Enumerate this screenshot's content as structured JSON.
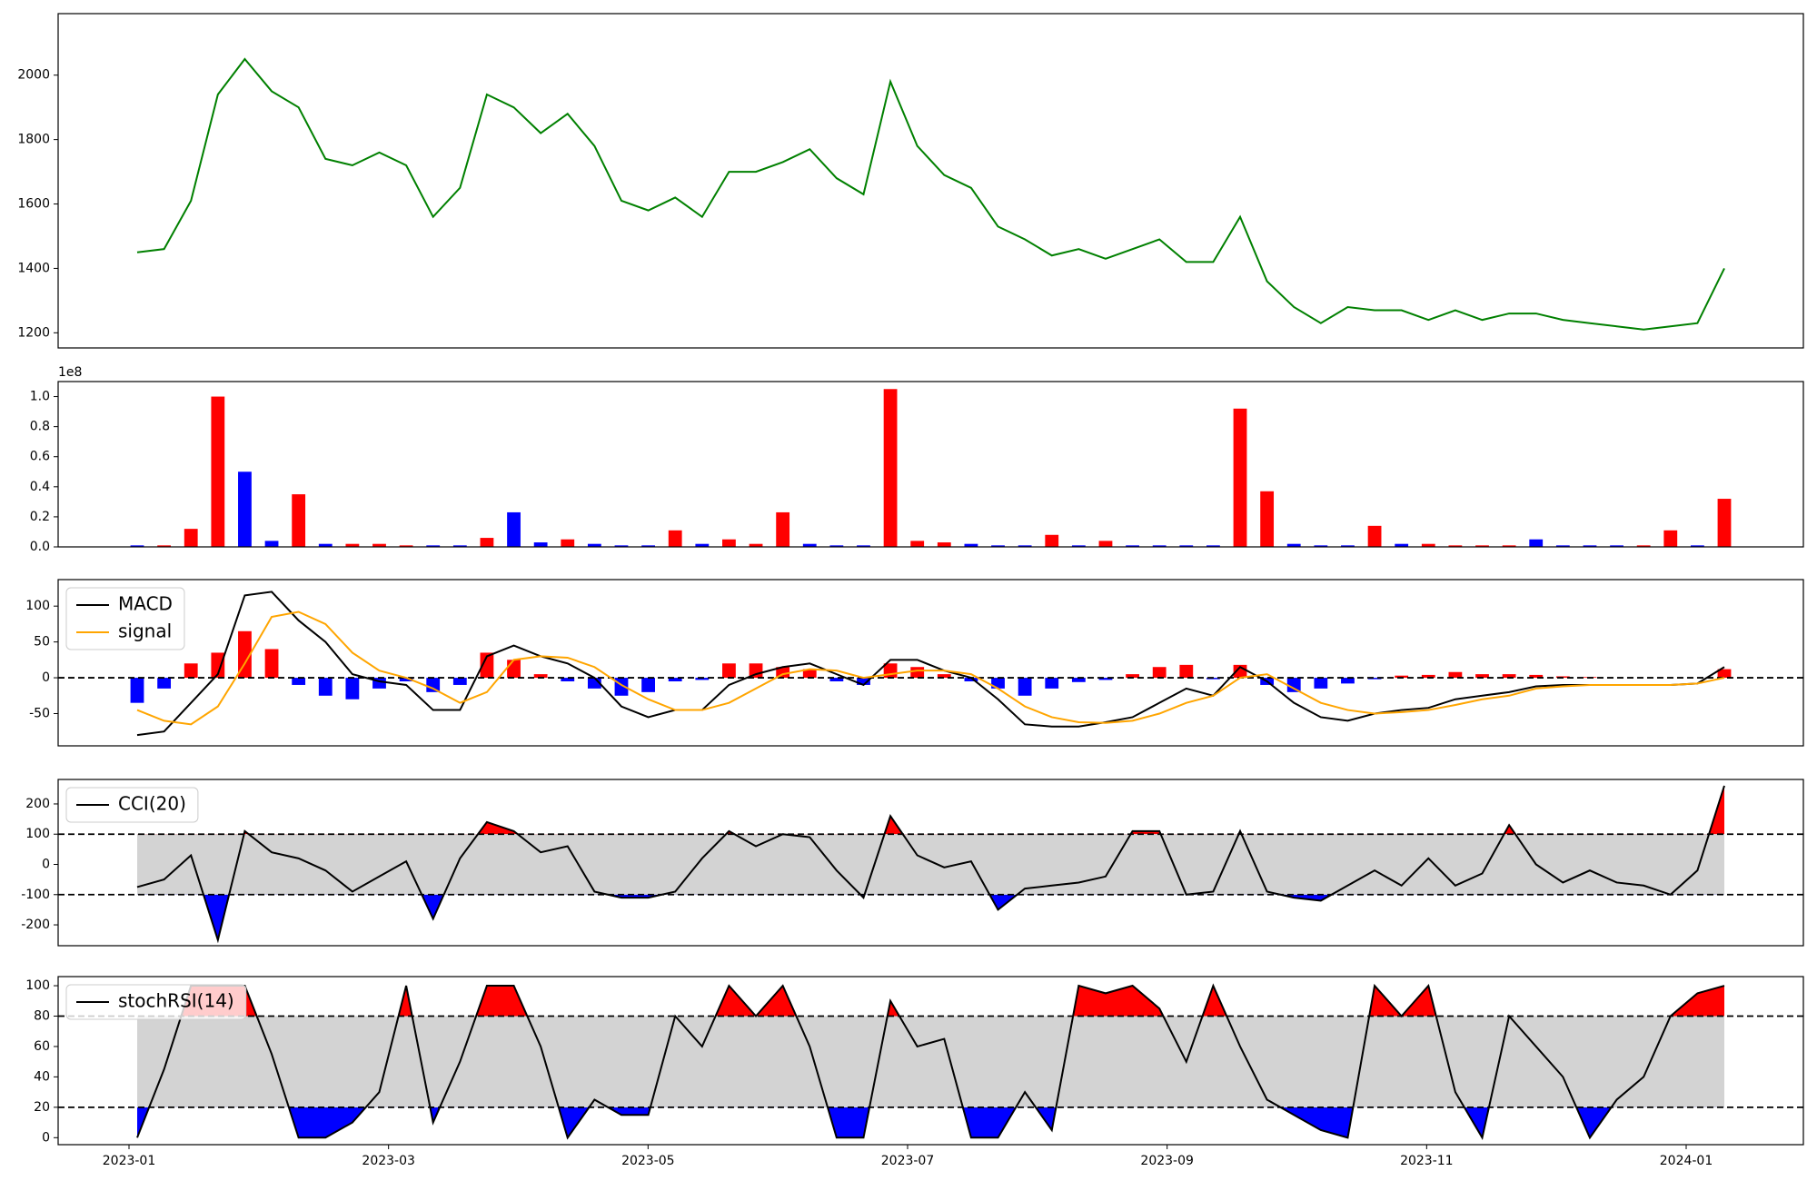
{
  "chart_data": [
    {
      "type": "line",
      "ylim": [
        1153,
        2191
      ],
      "yticks": [
        1200,
        1400,
        1600,
        1800,
        2000
      ],
      "series": [
        {
          "color": "green",
          "values": [
            1450,
            1460,
            1610,
            1940,
            2050,
            1950,
            1900,
            1740,
            1720,
            1760,
            1720,
            1560,
            1650,
            1940,
            1900,
            1820,
            1880,
            1780,
            1610,
            1580,
            1620,
            1560,
            1700,
            1700,
            1730,
            1770,
            1680,
            1630,
            1980,
            1780,
            1690,
            1650,
            1530,
            1490,
            1440,
            1460,
            1430,
            1460,
            1490,
            1420,
            1420,
            1560,
            1360,
            1280,
            1230,
            1280,
            1270,
            1270,
            1240,
            1270,
            1240,
            1260,
            1260,
            1240,
            1230,
            1220,
            1210,
            1220,
            1230,
            1400
          ]
        }
      ]
    },
    {
      "type": "bar",
      "offset_label": "1e8",
      "ylim": [
        0,
        1.1
      ],
      "yticks": [
        {
          "value": 0,
          "label": "0.0"
        },
        0.2,
        0.4,
        0.6,
        0.8,
        {
          "value": 1,
          "label": "1.0"
        }
      ],
      "values": [
        0.01,
        0.01,
        0.12,
        1.0,
        0.5,
        0.04,
        0.35,
        0.02,
        0.02,
        0.02,
        0.01,
        0.01,
        0.01,
        0.06,
        0.23,
        0.03,
        0.05,
        0.02,
        0.01,
        0.01,
        0.11,
        0.02,
        0.05,
        0.02,
        0.23,
        0.02,
        0.01,
        0.01,
        1.05,
        0.04,
        0.03,
        0.02,
        0.01,
        0.01,
        0.08,
        0.01,
        0.04,
        0.01,
        0.01,
        0.01,
        0.01,
        0.92,
        0.37,
        0.02,
        0.01,
        0.01,
        0.14,
        0.02,
        0.02,
        0.01,
        0.01,
        0.01,
        0.05,
        0.01,
        0.01,
        0.01,
        0.01,
        0.11,
        0.01,
        0.32
      ],
      "colors": [
        "blue",
        "red",
        "red",
        "red",
        "blue",
        "blue",
        "red",
        "blue",
        "red",
        "red",
        "red",
        "blue",
        "blue",
        "red",
        "blue",
        "blue",
        "red",
        "blue",
        "blue",
        "blue",
        "red",
        "blue",
        "red",
        "red",
        "red",
        "blue",
        "blue",
        "blue",
        "red",
        "red",
        "red",
        "blue",
        "blue",
        "blue",
        "red",
        "blue",
        "red",
        "blue",
        "blue",
        "blue",
        "blue",
        "red",
        "red",
        "blue",
        "blue",
        "blue",
        "red",
        "blue",
        "red",
        "red",
        "red",
        "red",
        "blue",
        "blue",
        "blue",
        "blue",
        "red",
        "red",
        "blue",
        "red"
      ]
    },
    {
      "type": "line",
      "ylim": [
        -95,
        137
      ],
      "yticks": [
        -50,
        0,
        50,
        100
      ],
      "hlines": [
        0
      ],
      "legend": "upper left",
      "histogram": [
        -35,
        -15,
        20,
        35,
        65,
        40,
        -10,
        -25,
        -30,
        -15,
        -5,
        -20,
        -10,
        35,
        25,
        5,
        -5,
        -15,
        -25,
        -20,
        -5,
        -3,
        20,
        20,
        15,
        12,
        -5,
        -10,
        20,
        15,
        5,
        -5,
        -15,
        -25,
        -15,
        -6,
        -3,
        5,
        15,
        18,
        -2,
        18,
        -10,
        -20,
        -15,
        -8,
        -2,
        3,
        4,
        8,
        5,
        5,
        4,
        2,
        1,
        0,
        0,
        0,
        0,
        12
      ],
      "pos_color": "red",
      "neg_color": "blue",
      "series": [
        {
          "name": "MACD",
          "color": "black",
          "values": [
            -80,
            -75,
            -35,
            5,
            115,
            120,
            80,
            50,
            5,
            -5,
            -10,
            -45,
            -45,
            30,
            45,
            30,
            20,
            0,
            -40,
            -55,
            -45,
            -45,
            -10,
            5,
            15,
            20,
            5,
            -10,
            25,
            25,
            10,
            0,
            -30,
            -65,
            -68,
            -68,
            -62,
            -55,
            -35,
            -15,
            -25,
            15,
            -5,
            -35,
            -55,
            -60,
            -50,
            -45,
            -42,
            -30,
            -25,
            -20,
            -12,
            -10,
            -10,
            -10,
            -10,
            -10,
            -8,
            15
          ]
        },
        {
          "name": "signal",
          "color": "orange",
          "values": [
            -45,
            -60,
            -65,
            -40,
            20,
            85,
            92,
            75,
            35,
            10,
            0,
            -15,
            -35,
            -20,
            25,
            30,
            28,
            15,
            -10,
            -30,
            -45,
            -45,
            -35,
            -15,
            5,
            12,
            10,
            0,
            5,
            10,
            10,
            5,
            -15,
            -40,
            -55,
            -62,
            -63,
            -60,
            -50,
            -35,
            -25,
            0,
            5,
            -15,
            -35,
            -45,
            -50,
            -48,
            -45,
            -38,
            -30,
            -25,
            -15,
            -12,
            -10,
            -10,
            -10,
            -10,
            -8,
            0
          ]
        }
      ]
    },
    {
      "type": "line",
      "ylim": [
        -269,
        281
      ],
      "yticks": [
        -200,
        -100,
        0,
        100,
        200
      ],
      "hlines": [
        100,
        -100
      ],
      "band": [
        -100,
        100
      ],
      "band_color": "lightgray",
      "above_color": "red",
      "below_color": "blue",
      "legend": "upper left",
      "series": [
        {
          "name": "CCI(20)",
          "color": "black",
          "values": [
            -75,
            -50,
            30,
            -250,
            110,
            40,
            20,
            -20,
            -90,
            -40,
            10,
            -180,
            20,
            140,
            110,
            40,
            60,
            -90,
            -110,
            -110,
            -90,
            20,
            110,
            60,
            100,
            90,
            -20,
            -110,
            160,
            30,
            -10,
            10,
            -150,
            -80,
            -70,
            -60,
            -40,
            110,
            110,
            -100,
            -90,
            110,
            -90,
            -110,
            -120,
            -70,
            -20,
            -70,
            20,
            -70,
            -30,
            130,
            0,
            -60,
            -20,
            -60,
            -70,
            -100,
            -20,
            260
          ]
        }
      ]
    },
    {
      "type": "line",
      "ylim": [
        -4.6,
        106
      ],
      "yticks": [
        0,
        20,
        40,
        60,
        80,
        100
      ],
      "hlines": [
        80,
        20
      ],
      "band": [
        20,
        80
      ],
      "band_color": "lightgray",
      "above_color": "red",
      "below_color": "blue",
      "legend": "upper left",
      "xticks": [
        "2023-01",
        "2023-03",
        "2023-05",
        "2023-07",
        "2023-09",
        "2023-11",
        "2024-01"
      ],
      "series": [
        {
          "name": "stochRSI(14)",
          "color": "black",
          "values": [
            0,
            45,
            100,
            100,
            100,
            55,
            0,
            0,
            10,
            30,
            100,
            10,
            50,
            100,
            100,
            60,
            0,
            25,
            15,
            15,
            80,
            60,
            100,
            80,
            100,
            60,
            0,
            0,
            90,
            60,
            65,
            0,
            0,
            30,
            5,
            100,
            95,
            100,
            85,
            50,
            100,
            60,
            25,
            15,
            5,
            0,
            100,
            80,
            100,
            30,
            0,
            80,
            60,
            40,
            0,
            25,
            40,
            80,
            95,
            100
          ]
        }
      ]
    }
  ]
}
